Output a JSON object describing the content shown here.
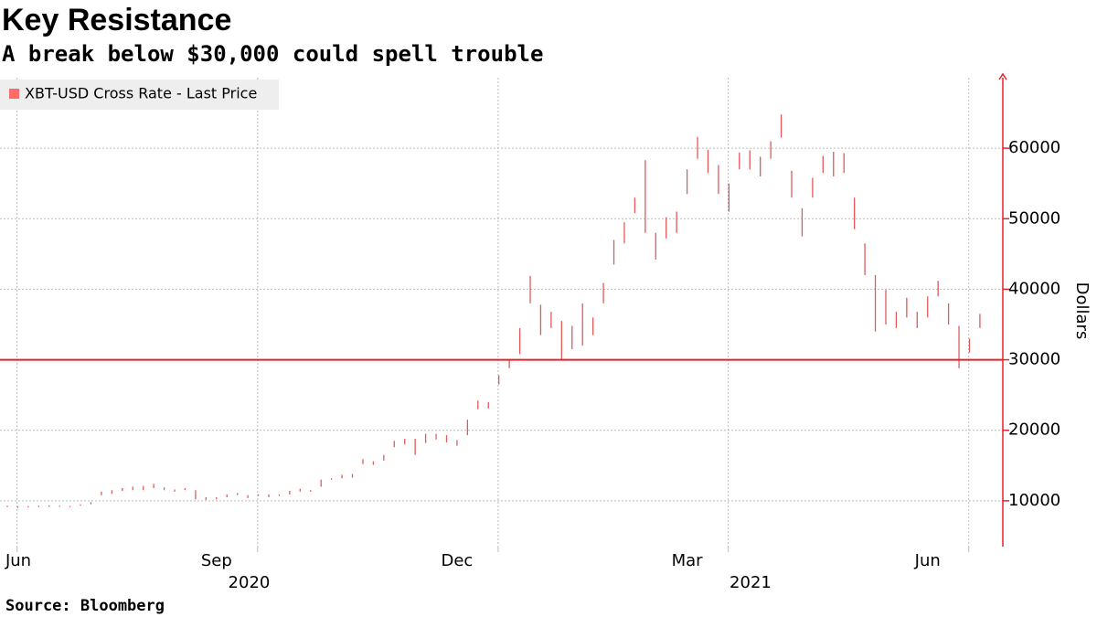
{
  "chart_data": {
    "type": "range_bar",
    "title": "Key Resistance",
    "subtitle": "A break below $30,000 could spell trouble",
    "source": "Source: Bloomberg",
    "y_label": "Dollars",
    "x_group_labels": [
      "2020",
      "2021"
    ],
    "categories": [
      "Jun",
      null,
      null,
      null,
      null,
      null,
      null,
      null,
      null,
      null,
      null,
      null,
      null,
      null,
      null,
      null,
      null,
      null,
      null,
      null,
      "Sep",
      null,
      null,
      null,
      null,
      null,
      null,
      null,
      null,
      null,
      null,
      null,
      null,
      null,
      null,
      null,
      null,
      null,
      null,
      null,
      null,
      null,
      null,
      "Dec",
      null,
      null,
      null,
      null,
      null,
      null,
      null,
      null,
      null,
      null,
      null,
      null,
      null,
      null,
      null,
      null,
      null,
      null,
      null,
      null,
      null,
      "Mar",
      null,
      null,
      null,
      null,
      null,
      null,
      null,
      null,
      null,
      null,
      null,
      null,
      null,
      null,
      null,
      null,
      null,
      null,
      null,
      null,
      null,
      null,
      "Jun",
      null,
      null,
      null,
      null,
      null
    ],
    "series": [
      {
        "name": "XBT-USD Cross Rate - Last Price",
        "color": "#e05a5a",
        "high": [
          9300,
          9200,
          9250,
          9300,
          9350,
          9300,
          9250,
          9500,
          9800,
          11300,
          11500,
          11800,
          12000,
          12100,
          12400,
          11900,
          11600,
          11800,
          11500,
          10500,
          10500,
          10900,
          11100,
          10800,
          10900,
          10900,
          10900,
          11400,
          11700,
          11500,
          13000,
          13200,
          13700,
          13800,
          15900,
          15600,
          16500,
          18500,
          18800,
          18800,
          19500,
          19500,
          19300,
          18600,
          21500,
          24200,
          24000,
          27800,
          30000,
          34500,
          41900,
          37800,
          36800,
          35500,
          34800,
          38000,
          36000,
          40900,
          47000,
          49500,
          53000,
          58300,
          48000,
          50200,
          51000,
          57000,
          61600,
          59800,
          57600,
          55000,
          59400,
          59700,
          58800,
          61000,
          64800,
          56800,
          51500,
          55800,
          58900,
          59500,
          59300,
          53000,
          46500,
          42000,
          39900,
          36800,
          38800,
          36800,
          39000,
          41200,
          38000,
          34800,
          33000,
          36500
        ],
        "low": [
          9100,
          9000,
          9050,
          9100,
          9150,
          9150,
          9100,
          9300,
          9500,
          10800,
          11000,
          11400,
          11500,
          11500,
          11800,
          11500,
          11300,
          11500,
          10200,
          10100,
          10200,
          10500,
          10800,
          10400,
          10700,
          10500,
          10700,
          10900,
          11300,
          11300,
          12000,
          13000,
          13200,
          13300,
          15200,
          15100,
          15700,
          17600,
          18000,
          16500,
          18200,
          18700,
          18300,
          17800,
          19300,
          23000,
          23100,
          26500,
          28800,
          30800,
          38000,
          33500,
          34500,
          30000,
          31500,
          32000,
          33500,
          38000,
          43500,
          46500,
          50800,
          48000,
          44200,
          47200,
          48000,
          53500,
          58500,
          56500,
          53500,
          51000,
          57000,
          57000,
          56000,
          58500,
          61500,
          53000,
          47500,
          53000,
          56500,
          56000,
          56500,
          48500,
          42000,
          34000,
          35000,
          34500,
          36000,
          34500,
          36000,
          39000,
          35000,
          28800,
          31000,
          34500
        ]
      }
    ],
    "reference_line": 30000,
    "reference_color": "#e8202a",
    "ylim": [
      3500,
      70000
    ],
    "yticks": [
      10000,
      20000,
      30000,
      40000,
      50000,
      60000
    ],
    "grid": true,
    "legend": "top-left"
  }
}
